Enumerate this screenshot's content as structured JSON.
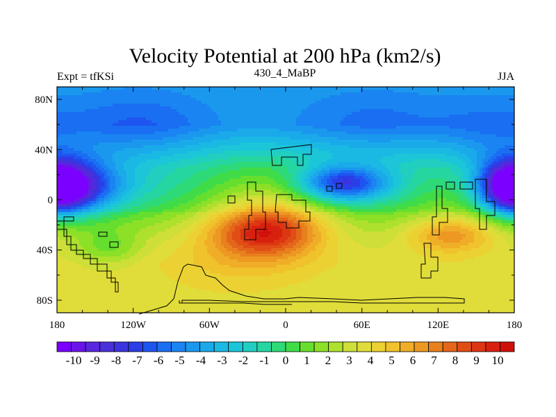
{
  "chart_data": {
    "type": "heatmap",
    "title": "Velocity Potential at 200 hPa (km2/s)",
    "left_label": "Expt = tfKSi",
    "center_label": "430_4_MaBP",
    "right_label": "JJA",
    "x_ticks": [
      "180",
      "120W",
      "60W",
      "0",
      "60E",
      "120E",
      "180"
    ],
    "x_tick_values": [
      -180,
      -120,
      -60,
      0,
      60,
      120,
      180
    ],
    "y_ticks": [
      "80N",
      "40N",
      "0",
      "40S",
      "80S"
    ],
    "y_tick_values": [
      80,
      40,
      0,
      -40,
      -80
    ],
    "xlim": [
      -180,
      180
    ],
    "ylim": [
      -90,
      90
    ],
    "colorbar_labels": [
      "-10",
      "-9",
      "-8",
      "-7",
      "-6",
      "-5",
      "-4",
      "-3",
      "-2",
      "-1",
      "0",
      "1",
      "2",
      "3",
      "4",
      "5",
      "6",
      "7",
      "8",
      "9",
      "10"
    ],
    "colorbar_min": -10.5,
    "colorbar_max": 10.5,
    "colorbar_colors": [
      "#7a00ff",
      "#6a13ea",
      "#5a26e0",
      "#4b2fd8",
      "#3c33e0",
      "#2a3fe8",
      "#1e55f0",
      "#1a6ef2",
      "#1a84f2",
      "#1a98ee",
      "#1aaaea",
      "#1ab9e4",
      "#1cc6d8",
      "#20cfc0",
      "#26d6a0",
      "#2ed978",
      "#40dc48",
      "#66de2e",
      "#8ce028",
      "#aee02e",
      "#cddf38",
      "#e0dc3a",
      "#ebd232",
      "#f0c22c",
      "#f0ae28",
      "#ec9822",
      "#e8801e",
      "#e4661a",
      "#e04e16",
      "#dc3612",
      "#d8200e",
      "#d0100a"
    ],
    "field_centers": [
      {
        "lon": -170,
        "lat": 10,
        "amp": -9.5,
        "slon": 28,
        "slat": 16
      },
      {
        "lon": 178,
        "lat": 10,
        "amp": -8.0,
        "slon": 16,
        "slat": 14
      },
      {
        "lon": 45,
        "lat": 13,
        "amp": -7.0,
        "slon": 24,
        "slat": 10
      },
      {
        "lon": -115,
        "lat": 58,
        "amp": -2.0,
        "slon": 40,
        "slat": 20
      },
      {
        "lon": 70,
        "lat": 60,
        "amp": -1.5,
        "slon": 45,
        "slat": 20
      },
      {
        "lon": 160,
        "lat": 50,
        "amp": -1.5,
        "slon": 30,
        "slat": 20
      },
      {
        "lon": -15,
        "lat": -25,
        "amp": 6.5,
        "slon": 30,
        "slat": 14
      },
      {
        "lon": 130,
        "lat": -28,
        "amp": 3.5,
        "slon": 24,
        "slat": 10
      },
      {
        "lon": -140,
        "lat": -38,
        "amp": -2.0,
        "slon": 18,
        "slat": 10
      },
      {
        "lon": -40,
        "lat": -45,
        "amp": 1.2,
        "slon": 40,
        "slat": 18
      }
    ],
    "field_base": {
      "north": -4.0,
      "tropics": 2.0,
      "south": 3.6
    }
  }
}
